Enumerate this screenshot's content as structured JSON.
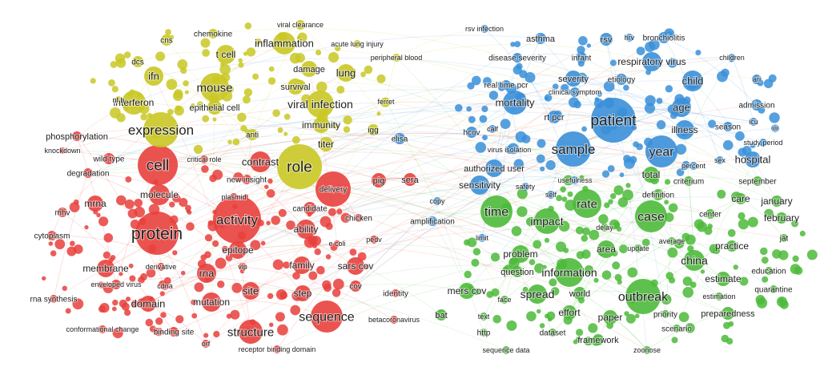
{
  "clusters": {
    "red": {
      "color": "#e8403c"
    },
    "yellow": {
      "color": "#c9c824"
    },
    "green": {
      "color": "#4cba3a"
    },
    "blue": {
      "color": "#3a8fd8"
    }
  },
  "nodes": [
    {
      "label": "cell",
      "cluster": "red"
    },
    {
      "label": "protein",
      "cluster": "red"
    },
    {
      "label": "activity",
      "cluster": "red"
    },
    {
      "label": "structure",
      "cluster": "red"
    },
    {
      "label": "sequence",
      "cluster": "red"
    },
    {
      "label": "molecule",
      "cluster": "red"
    },
    {
      "label": "mrna",
      "cluster": "red"
    },
    {
      "label": "membrane",
      "cluster": "red"
    },
    {
      "label": "domain",
      "cluster": "red"
    },
    {
      "label": "mutation",
      "cluster": "red"
    },
    {
      "label": "rna",
      "cluster": "red"
    },
    {
      "label": "site",
      "cluster": "red"
    },
    {
      "label": "epitope",
      "cluster": "red"
    },
    {
      "label": "family",
      "cluster": "red"
    },
    {
      "label": "step",
      "cluster": "red"
    },
    {
      "label": "ability",
      "cluster": "red"
    },
    {
      "label": "sars cov",
      "cluster": "red"
    },
    {
      "label": "contrast",
      "cluster": "red"
    },
    {
      "label": "mhv",
      "cluster": "red"
    },
    {
      "label": "cytoplasm",
      "cluster": "red"
    },
    {
      "label": "degradation",
      "cluster": "red"
    },
    {
      "label": "wild type",
      "cluster": "red"
    },
    {
      "label": "knockdown",
      "cluster": "red"
    },
    {
      "label": "phosphorylation",
      "cluster": "red"
    },
    {
      "label": "rna synthesis",
      "cluster": "red"
    },
    {
      "label": "enveloped virus",
      "cluster": "red"
    },
    {
      "label": "derivative",
      "cluster": "red"
    },
    {
      "label": "cdna",
      "cluster": "red"
    },
    {
      "label": "vlp",
      "cluster": "red"
    },
    {
      "label": "binding site",
      "cluster": "red"
    },
    {
      "label": "conformational change",
      "cluster": "red"
    },
    {
      "label": "orf",
      "cluster": "red"
    },
    {
      "label": "receptor binding domain",
      "cluster": "red"
    },
    {
      "label": "plasmid",
      "cluster": "red"
    },
    {
      "label": "new insight",
      "cluster": "red"
    },
    {
      "label": "critical role",
      "cluster": "red"
    },
    {
      "label": "delivery",
      "cluster": "red"
    },
    {
      "label": "pig",
      "cluster": "red"
    },
    {
      "label": "sera",
      "cluster": "red"
    },
    {
      "label": "candidate",
      "cluster": "red"
    },
    {
      "label": "chicken",
      "cluster": "red"
    },
    {
      "label": "e coli",
      "cluster": "red"
    },
    {
      "label": "pedv",
      "cluster": "red"
    },
    {
      "label": "cov",
      "cluster": "red"
    },
    {
      "label": "identity",
      "cluster": "red"
    },
    {
      "label": "betacoronavirus",
      "cluster": "red"
    },
    {
      "label": "expression",
      "cluster": "yellow"
    },
    {
      "label": "role",
      "cluster": "yellow"
    },
    {
      "label": "mouse",
      "cluster": "yellow"
    },
    {
      "label": "viral infection",
      "cluster": "yellow"
    },
    {
      "label": "inflammation",
      "cluster": "yellow"
    },
    {
      "label": "interferon",
      "cluster": "yellow"
    },
    {
      "label": "ifn",
      "cluster": "yellow"
    },
    {
      "label": "t cell",
      "cluster": "yellow"
    },
    {
      "label": "lung",
      "cluster": "yellow"
    },
    {
      "label": "damage",
      "cluster": "yellow"
    },
    {
      "label": "survival",
      "cluster": "yellow"
    },
    {
      "label": "immunity",
      "cluster": "yellow"
    },
    {
      "label": "titer",
      "cluster": "yellow"
    },
    {
      "label": "epithelial cell",
      "cluster": "yellow"
    },
    {
      "label": "anti",
      "cluster": "yellow"
    },
    {
      "label": "igg",
      "cluster": "yellow"
    },
    {
      "label": "chemokine",
      "cluster": "yellow"
    },
    {
      "label": "cns",
      "cluster": "yellow"
    },
    {
      "label": "dcs",
      "cluster": "yellow"
    },
    {
      "label": "nf b",
      "cluster": "yellow"
    },
    {
      "label": "viral clearance",
      "cluster": "yellow"
    },
    {
      "label": "acute lung injury",
      "cluster": "yellow"
    },
    {
      "label": "peripheral blood",
      "cluster": "yellow"
    },
    {
      "label": "ferret",
      "cluster": "yellow"
    },
    {
      "label": "patient",
      "cluster": "blue"
    },
    {
      "label": "sample",
      "cluster": "blue"
    },
    {
      "label": "year",
      "cluster": "blue"
    },
    {
      "label": "mortality",
      "cluster": "blue"
    },
    {
      "label": "child",
      "cluster": "blue"
    },
    {
      "label": "age",
      "cluster": "blue"
    },
    {
      "label": "illness",
      "cluster": "blue"
    },
    {
      "label": "hospital",
      "cluster": "blue"
    },
    {
      "label": "respiratory virus",
      "cluster": "blue"
    },
    {
      "label": "severity",
      "cluster": "blue"
    },
    {
      "label": "etiology",
      "cluster": "blue"
    },
    {
      "label": "rsv",
      "cluster": "blue"
    },
    {
      "label": "hrv",
      "cluster": "blue"
    },
    {
      "label": "bronchiolitis",
      "cluster": "blue"
    },
    {
      "label": "asthma",
      "cluster": "blue"
    },
    {
      "label": "rsv infection",
      "cluster": "blue"
    },
    {
      "label": "disease severity",
      "cluster": "blue"
    },
    {
      "label": "infant",
      "cluster": "blue"
    },
    {
      "label": "children",
      "cluster": "blue"
    },
    {
      "label": "ari",
      "cluster": "blue"
    },
    {
      "label": "admission",
      "cluster": "blue"
    },
    {
      "label": "icu",
      "cluster": "blue"
    },
    {
      "label": "ili",
      "cluster": "blue"
    },
    {
      "label": "season",
      "cluster": "blue"
    },
    {
      "label": "study period",
      "cluster": "blue"
    },
    {
      "label": "sex",
      "cluster": "blue"
    },
    {
      "label": "percent",
      "cluster": "blue"
    },
    {
      "label": "real time pcr",
      "cluster": "blue"
    },
    {
      "label": "clinical symptom",
      "cluster": "blue"
    },
    {
      "label": "rt pcr",
      "cluster": "blue"
    },
    {
      "label": "calf",
      "cluster": "blue"
    },
    {
      "label": "hcov",
      "cluster": "blue"
    },
    {
      "label": "elisa",
      "cluster": "blue"
    },
    {
      "label": "virus isolation",
      "cluster": "blue"
    },
    {
      "label": "authorized user",
      "cluster": "blue"
    },
    {
      "label": "sensitivity",
      "cluster": "blue"
    },
    {
      "label": "copy",
      "cluster": "blue"
    },
    {
      "label": "amplification",
      "cluster": "blue"
    },
    {
      "label": "limit",
      "cluster": "blue"
    },
    {
      "label": "usefulness",
      "cluster": "blue"
    },
    {
      "label": "safety",
      "cluster": "blue"
    },
    {
      "label": "self",
      "cluster": "blue"
    },
    {
      "label": "time",
      "cluster": "green"
    },
    {
      "label": "rate",
      "cluster": "green"
    },
    {
      "label": "case",
      "cluster": "green"
    },
    {
      "label": "impact",
      "cluster": "green"
    },
    {
      "label": "outbreak",
      "cluster": "green"
    },
    {
      "label": "information",
      "cluster": "green"
    },
    {
      "label": "china",
      "cluster": "green"
    },
    {
      "label": "spread",
      "cluster": "green"
    },
    {
      "label": "problem",
      "cluster": "green"
    },
    {
      "label": "area",
      "cluster": "green"
    },
    {
      "label": "total",
      "cluster": "green"
    },
    {
      "label": "definition",
      "cluster": "green"
    },
    {
      "label": "criterium",
      "cluster": "green"
    },
    {
      "label": "care",
      "cluster": "green"
    },
    {
      "label": "january",
      "cluster": "green"
    },
    {
      "label": "february",
      "cluster": "green"
    },
    {
      "label": "september",
      "cluster": "green"
    },
    {
      "label": "center",
      "cluster": "green"
    },
    {
      "label": "jat",
      "cluster": "green"
    },
    {
      "label": "practice",
      "cluster": "green"
    },
    {
      "label": "education",
      "cluster": "green"
    },
    {
      "label": "estimate",
      "cluster": "green"
    },
    {
      "label": "quarantine",
      "cluster": "green"
    },
    {
      "label": "estimation",
      "cluster": "green"
    },
    {
      "label": "preparedness",
      "cluster": "green"
    },
    {
      "label": "average",
      "cluster": "green"
    },
    {
      "label": "update",
      "cluster": "green"
    },
    {
      "label": "delay",
      "cluster": "green"
    },
    {
      "label": "question",
      "cluster": "green"
    },
    {
      "label": "mers cov",
      "cluster": "green"
    },
    {
      "label": "face",
      "cluster": "green"
    },
    {
      "label": "world",
      "cluster": "green"
    },
    {
      "label": "effort",
      "cluster": "green"
    },
    {
      "label": "paper",
      "cluster": "green"
    },
    {
      "label": "priority",
      "cluster": "green"
    },
    {
      "label": "scenario",
      "cluster": "green"
    },
    {
      "label": "framework",
      "cluster": "green"
    },
    {
      "label": "dataset",
      "cluster": "green"
    },
    {
      "label": "zoonose",
      "cluster": "green"
    },
    {
      "label": "sequence data",
      "cluster": "green"
    },
    {
      "label": "http",
      "cluster": "green"
    },
    {
      "label": "text",
      "cluster": "green"
    },
    {
      "label": "bat",
      "cluster": "green"
    }
  ]
}
